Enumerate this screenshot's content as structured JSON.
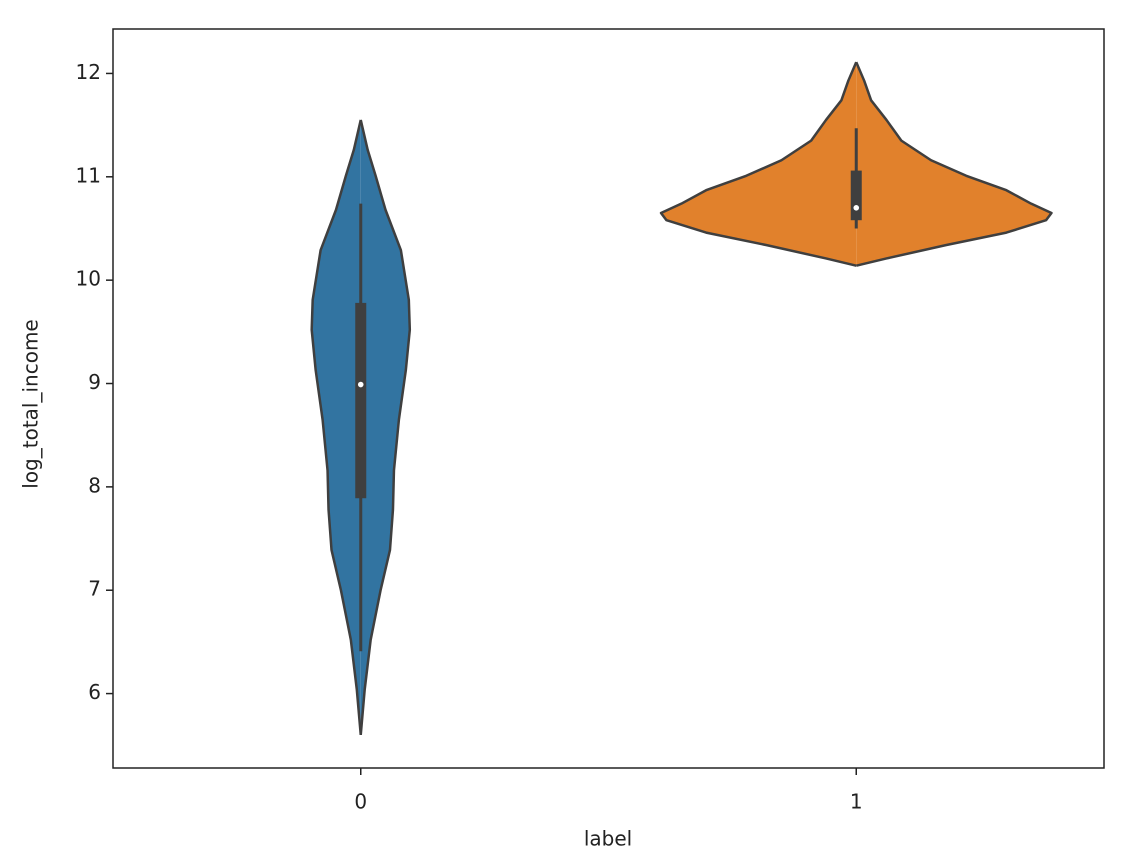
{
  "chart_data": {
    "type": "violin",
    "xlabel": "label",
    "ylabel": "log_total_income",
    "categories": [
      "0",
      "1"
    ],
    "ylim": [
      5.28,
      12.43
    ],
    "yticks": [
      6,
      7,
      8,
      9,
      10,
      11,
      12
    ],
    "edgecolor": "#3f3f3f",
    "violins": [
      {
        "color": "#3274a1",
        "kde_y": [
          11.55,
          11.26,
          11.01,
          10.68,
          10.29,
          9.81,
          9.52,
          9.13,
          8.65,
          8.16,
          7.78,
          7.39,
          7.0,
          6.52,
          6.04,
          5.6
        ],
        "kde_width": [
          0,
          0.014,
          0.03,
          0.05,
          0.081,
          0.097,
          0.099,
          0.091,
          0.077,
          0.067,
          0.065,
          0.059,
          0.04,
          0.02,
          0.008,
          0
        ],
        "whisker_low": 6.41,
        "q1": 7.89,
        "median": 8.99,
        "q3": 9.78,
        "whisker_high": 10.74
      },
      {
        "color": "#e1812c",
        "kde_y": [
          12.11,
          11.93,
          11.74,
          11.55,
          11.35,
          11.16,
          11.01,
          10.87,
          10.74,
          10.65,
          10.58,
          10.46,
          10.34,
          10.21,
          10.14
        ],
        "kde_width": [
          0,
          0.016,
          0.03,
          0.061,
          0.091,
          0.151,
          0.222,
          0.303,
          0.353,
          0.394,
          0.383,
          0.303,
          0.182,
          0.061,
          0
        ],
        "whisker_low": 10.5,
        "q1": 10.58,
        "median": 10.7,
        "q3": 11.06,
        "whisker_high": 11.47
      }
    ]
  }
}
